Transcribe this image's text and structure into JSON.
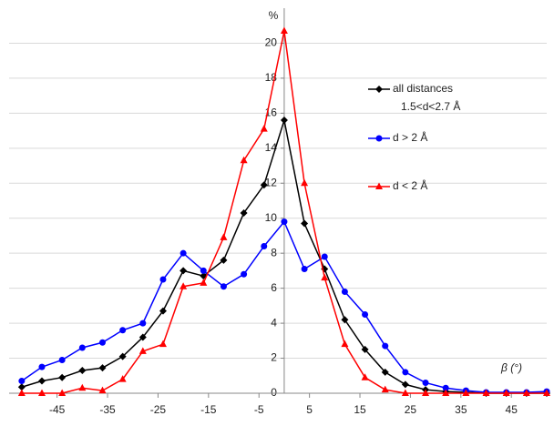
{
  "chart_data": {
    "type": "line",
    "y_label": "%",
    "x_label": "β  (°)",
    "x": [
      -52,
      -48,
      -44,
      -40,
      -36,
      -32,
      -28,
      -24,
      -20,
      -16,
      -12,
      -8,
      -4,
      0,
      4,
      8,
      12,
      16,
      20,
      24,
      28,
      32,
      36,
      40,
      44,
      48,
      52
    ],
    "series": [
      {
        "name": "all distances",
        "note": "1.5<d<2.7 Å",
        "color": "#000000",
        "marker": "diamond",
        "values": [
          0.35,
          0.7,
          0.9,
          1.3,
          1.45,
          2.1,
          3.2,
          4.7,
          7.0,
          6.7,
          7.6,
          10.3,
          11.9,
          15.6,
          9.7,
          7.1,
          4.2,
          2.5,
          1.2,
          0.5,
          0.2,
          0.1,
          0.05,
          0,
          0,
          0,
          0
        ]
      },
      {
        "name": "d > 2 Å",
        "color": "#0000ff",
        "marker": "circle",
        "values": [
          0.7,
          1.5,
          1.9,
          2.6,
          2.9,
          3.6,
          4.0,
          6.5,
          8.0,
          7.0,
          6.1,
          6.8,
          8.4,
          9.8,
          7.1,
          7.8,
          5.8,
          4.5,
          2.7,
          1.2,
          0.6,
          0.3,
          0.15,
          0.05,
          0.05,
          0.05,
          0.1
        ]
      },
      {
        "name": "d < 2 Å",
        "color": "#ff0000",
        "marker": "triangle",
        "values": [
          0,
          0,
          0,
          0.3,
          0.15,
          0.8,
          2.4,
          2.8,
          6.1,
          6.3,
          8.9,
          13.3,
          15.1,
          20.7,
          12.0,
          6.6,
          2.8,
          0.9,
          0.2,
          0,
          0,
          0,
          0,
          0,
          0,
          0,
          0
        ]
      }
    ],
    "xlim": [
      -54.5,
      52
    ],
    "ylim": [
      0,
      22
    ],
    "xticks": [
      -45,
      -35,
      -25,
      -15,
      -5,
      5,
      15,
      25,
      35,
      45
    ],
    "yticks": [
      0,
      2,
      4,
      6,
      8,
      10,
      12,
      14,
      16,
      18,
      20
    ],
    "grid": true
  }
}
